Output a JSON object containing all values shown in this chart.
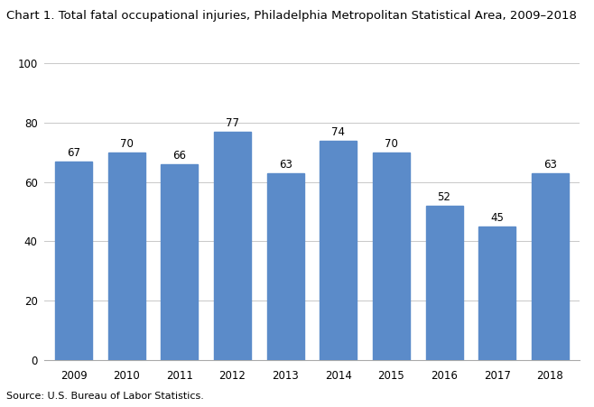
{
  "title": "Chart 1. Total fatal occupational injuries, Philadelphia Metropolitan Statistical Area, 2009–2018",
  "years": [
    2009,
    2010,
    2011,
    2012,
    2013,
    2014,
    2015,
    2016,
    2017,
    2018
  ],
  "values": [
    67,
    70,
    66,
    77,
    63,
    74,
    70,
    52,
    45,
    63
  ],
  "bar_color": "#5b8bc9",
  "ylim": [
    0,
    100
  ],
  "yticks": [
    0,
    20,
    40,
    60,
    80,
    100
  ],
  "source_text": "Source: U.S. Bureau of Labor Statistics.",
  "title_fontsize": 9.5,
  "label_fontsize": 8.5,
  "tick_fontsize": 8.5,
  "source_fontsize": 8.0,
  "background_color": "#ffffff",
  "grid_color": "#c8c8c8",
  "bar_width": 0.7
}
